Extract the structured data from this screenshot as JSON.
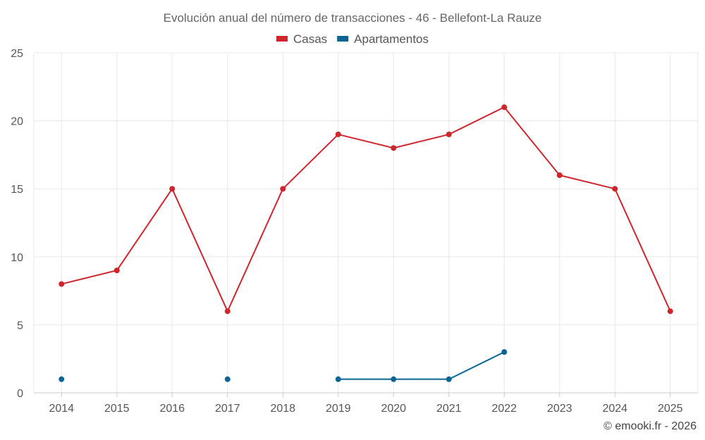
{
  "chart_data": {
    "type": "line",
    "title": "Evolución anual del número de transacciones - 46 - Bellefont-La Rauze",
    "categories": [
      "2014",
      "2015",
      "2016",
      "2017",
      "2018",
      "2019",
      "2020",
      "2021",
      "2022",
      "2023",
      "2024",
      "2025"
    ],
    "ylim": [
      0,
      25
    ],
    "yticks": [
      0,
      5,
      10,
      15,
      20,
      25
    ],
    "grid": true,
    "legend_position": "top-center",
    "series": [
      {
        "name": "Casas",
        "color": "#d0262b",
        "values": [
          8,
          9,
          15,
          6,
          15,
          19,
          18,
          19,
          21,
          16,
          15,
          6
        ]
      },
      {
        "name": "Apartamentos",
        "color": "#0a6496",
        "values": [
          1,
          null,
          null,
          1,
          null,
          1,
          1,
          1,
          3,
          null,
          null,
          null
        ]
      }
    ]
  },
  "credit": "© emooki.fr - 2026"
}
